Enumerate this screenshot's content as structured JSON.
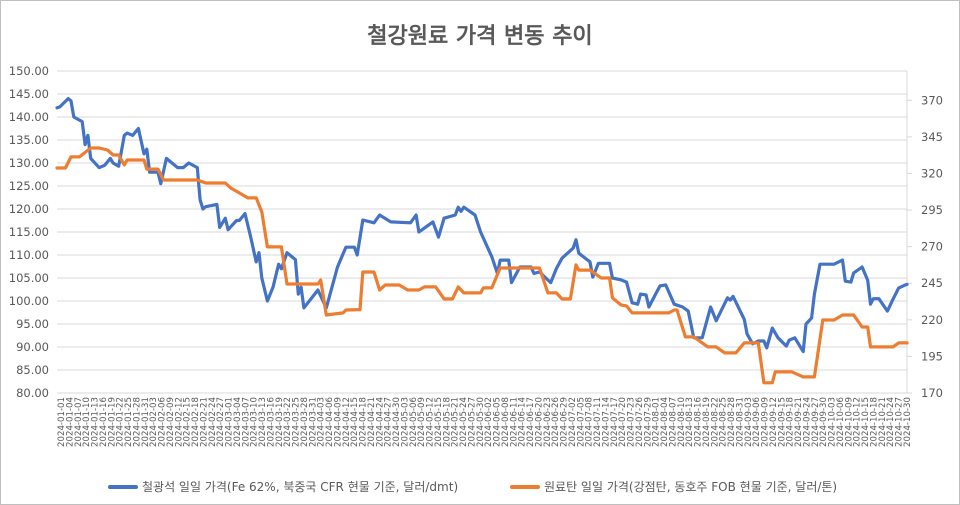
{
  "chart_data": {
    "type": "line",
    "title": "철강원료 가격 변동 추이",
    "x_ticks": [
      "2024-01-01",
      "2024-01-04",
      "2024-01-07",
      "2024-01-10",
      "2024-01-13",
      "2024-01-16",
      "2024-01-19",
      "2024-01-22",
      "2024-01-25",
      "2024-01-28",
      "2024-01-31",
      "2024-02-03",
      "2024-02-06",
      "2024-02-09",
      "2024-02-12",
      "2024-02-15",
      "2024-02-18",
      "2024-02-21",
      "2024-02-24",
      "2024-02-27",
      "2024-03-01",
      "2024-03-04",
      "2024-03-07",
      "2024-03-10",
      "2024-03-13",
      "2024-03-16",
      "2024-03-19",
      "2024-03-22",
      "2024-03-25",
      "2024-03-28",
      "2024-03-31",
      "2024-04-03",
      "2024-04-06",
      "2024-04-09",
      "2024-04-12",
      "2024-04-15",
      "2024-04-18",
      "2024-04-21",
      "2024-04-24",
      "2024-04-27",
      "2024-04-30",
      "2024-05-03",
      "2024-05-06",
      "2024-05-09",
      "2024-05-12",
      "2024-05-15",
      "2024-05-18",
      "2024-05-21",
      "2024-05-24",
      "2024-05-27",
      "2024-05-30",
      "2024-06-02",
      "2024-06-05",
      "2024-06-08",
      "2024-06-11",
      "2024-06-14",
      "2024-06-17",
      "2024-06-20",
      "2024-06-23",
      "2024-06-26",
      "2024-06-29",
      "2024-07-02",
      "2024-07-05",
      "2024-07-08",
      "2024-07-11",
      "2024-07-14",
      "2024-07-17",
      "2024-07-20",
      "2024-07-23",
      "2024-07-26",
      "2024-07-29",
      "2024-08-01",
      "2024-08-04",
      "2024-08-07",
      "2024-08-10",
      "2024-08-13",
      "2024-08-16",
      "2024-08-19",
      "2024-08-22",
      "2024-08-25",
      "2024-08-28",
      "2024-08-31",
      "2024-09-03",
      "2024-09-06",
      "2024-09-09",
      "2024-09-12",
      "2024-09-15",
      "2024-09-18",
      "2024-09-21",
      "2024-09-24",
      "2024-09-27",
      "2024-09-30",
      "2024-10-03",
      "2024-10-06",
      "2024-10-09",
      "2024-10-12",
      "2024-10-15",
      "2024-10-18",
      "2024-10-21",
      "2024-10-24",
      "2024-10-27",
      "2024-10-30"
    ],
    "x_range_days": [
      0,
      303
    ],
    "y_left": {
      "min": 80,
      "max": 150,
      "ticks": [
        "150.00",
        "145.00",
        "140.00",
        "135.00",
        "130.00",
        "125.00",
        "120.00",
        "115.00",
        "110.00",
        "105.00",
        "100.00",
        "95.00",
        "90.00",
        "85.00",
        "80.00"
      ],
      "tick_values": [
        150,
        145,
        140,
        135,
        130,
        125,
        120,
        115,
        110,
        105,
        100,
        95,
        90,
        85,
        80
      ]
    },
    "y_right": {
      "min": 170,
      "max": 390,
      "ticks": [
        "370",
        "345",
        "320",
        "295",
        "270",
        "245",
        "220",
        "195",
        "170"
      ],
      "tick_values": [
        370,
        345,
        320,
        295,
        270,
        245,
        220,
        195,
        170
      ]
    },
    "grid": true,
    "legend_position": "bottom",
    "series": [
      {
        "name": "철광석 일일 가격(Fe 62%, 북중국 CFR 현물 기준, 달러/dmt)",
        "axis": "left",
        "color": "#4472C4",
        "points_day_value": [
          [
            0,
            142
          ],
          [
            1,
            142.2
          ],
          [
            4,
            144
          ],
          [
            5,
            143.5
          ],
          [
            6,
            140
          ],
          [
            9,
            139
          ],
          [
            10,
            134
          ],
          [
            11,
            136
          ],
          [
            12,
            131
          ],
          [
            15,
            129
          ],
          [
            17,
            129.5
          ],
          [
            19,
            131
          ],
          [
            20,
            130
          ],
          [
            22,
            129.3
          ],
          [
            24,
            136
          ],
          [
            25,
            136.5
          ],
          [
            27,
            136
          ],
          [
            29,
            137.5
          ],
          [
            31,
            132
          ],
          [
            32,
            133
          ],
          [
            33,
            128
          ],
          [
            36,
            128
          ],
          [
            37,
            125.5
          ],
          [
            39,
            131
          ],
          [
            41,
            130
          ],
          [
            43,
            129
          ],
          [
            45,
            129
          ],
          [
            47,
            130
          ],
          [
            50,
            129
          ],
          [
            51,
            122
          ],
          [
            52,
            120
          ],
          [
            53,
            120.5
          ],
          [
            57,
            121
          ],
          [
            58,
            116
          ],
          [
            60,
            118
          ],
          [
            61,
            115.5
          ],
          [
            64,
            117.5
          ],
          [
            65,
            117.5
          ],
          [
            67,
            119
          ],
          [
            69,
            114
          ],
          [
            71,
            108.5
          ],
          [
            72,
            110.5
          ],
          [
            73,
            105
          ],
          [
            75,
            100
          ],
          [
            77,
            103
          ],
          [
            79,
            108
          ],
          [
            80,
            107
          ],
          [
            82,
            110.5
          ],
          [
            85,
            109
          ],
          [
            86,
            101.5
          ],
          [
            87,
            103
          ],
          [
            88,
            98.5
          ],
          [
            93,
            102.4
          ],
          [
            96,
            98.5
          ],
          [
            100,
            107.4
          ],
          [
            103,
            111.7
          ],
          [
            106,
            111.7
          ],
          [
            107,
            110
          ],
          [
            109,
            117.6
          ],
          [
            113,
            117
          ],
          [
            115,
            118.7
          ],
          [
            119,
            117.2
          ],
          [
            126,
            117
          ],
          [
            128,
            118.7
          ],
          [
            129,
            115
          ],
          [
            134,
            117.2
          ],
          [
            136,
            113.9
          ],
          [
            138,
            118
          ],
          [
            142,
            118.7
          ],
          [
            143,
            120.4
          ],
          [
            144,
            119.5
          ],
          [
            145,
            120.4
          ],
          [
            149,
            118.7
          ],
          [
            151,
            115
          ],
          [
            155,
            109.6
          ],
          [
            157,
            106
          ],
          [
            158,
            108.9
          ],
          [
            161,
            108.9
          ],
          [
            162,
            104
          ],
          [
            165,
            107.4
          ],
          [
            169,
            107.4
          ],
          [
            170,
            106
          ],
          [
            172,
            106.3
          ],
          [
            176,
            104
          ],
          [
            178,
            107
          ],
          [
            180,
            109.3
          ],
          [
            184,
            111.5
          ],
          [
            185,
            113.3
          ],
          [
            186,
            110.4
          ],
          [
            190,
            108.5
          ],
          [
            191,
            105.2
          ],
          [
            193,
            108.2
          ],
          [
            197,
            108.2
          ],
          [
            198,
            105
          ],
          [
            201,
            104.6
          ],
          [
            203,
            104.1
          ],
          [
            205,
            99.6
          ],
          [
            207,
            99.3
          ],
          [
            208,
            101.5
          ],
          [
            210,
            101.3
          ],
          [
            211,
            98.7
          ],
          [
            214,
            102.2
          ],
          [
            215,
            103.3
          ],
          [
            217,
            103.5
          ],
          [
            220,
            99.3
          ],
          [
            223,
            98.7
          ],
          [
            225,
            97.8
          ],
          [
            227,
            92
          ],
          [
            230,
            92
          ],
          [
            233,
            98.7
          ],
          [
            235,
            95.7
          ],
          [
            239,
            100.7
          ],
          [
            240,
            100.2
          ],
          [
            241,
            101
          ],
          [
            245,
            96
          ],
          [
            246,
            92.8
          ],
          [
            248,
            90.7
          ],
          [
            250,
            91.3
          ],
          [
            252,
            91.3
          ],
          [
            253,
            89.8
          ],
          [
            255,
            94.1
          ],
          [
            257,
            92
          ],
          [
            260,
            90.2
          ],
          [
            261,
            91.5
          ],
          [
            263,
            92
          ],
          [
            266,
            89
          ],
          [
            267,
            95
          ],
          [
            269,
            96.3
          ],
          [
            270,
            101.5
          ],
          [
            272,
            108
          ],
          [
            277,
            108
          ],
          [
            280,
            108.9
          ],
          [
            281,
            104.3
          ],
          [
            283,
            104.1
          ],
          [
            284,
            106.1
          ],
          [
            287,
            107.4
          ],
          [
            289,
            104.5
          ],
          [
            290,
            99.3
          ],
          [
            291,
            100.5
          ],
          [
            293,
            100.5
          ],
          [
            296,
            97.8
          ],
          [
            298,
            100.4
          ],
          [
            300,
            102.8
          ],
          [
            302,
            103.4
          ],
          [
            303,
            103.6
          ]
        ]
      },
      {
        "name": "원료탄 일일 가격(강점탄, 동호주 FOB 현물 기준, 달러/톤)",
        "axis": "right",
        "color": "#ED7D31",
        "points_day_value": [
          [
            0,
            323.7
          ],
          [
            3,
            323.7
          ],
          [
            5,
            331.3
          ],
          [
            8,
            331.3
          ],
          [
            12,
            337.4
          ],
          [
            15,
            337.4
          ],
          [
            18,
            336
          ],
          [
            20,
            332.6
          ],
          [
            22,
            332.6
          ],
          [
            24,
            325.8
          ],
          [
            25,
            329.2
          ],
          [
            31,
            329.2
          ],
          [
            32,
            323
          ],
          [
            36,
            323
          ],
          [
            38,
            315.5
          ],
          [
            50,
            315.5
          ],
          [
            53,
            313.5
          ],
          [
            60,
            313.5
          ],
          [
            62,
            310
          ],
          [
            65,
            306.7
          ],
          [
            68,
            303.3
          ],
          [
            71,
            303.3
          ],
          [
            73,
            293.7
          ],
          [
            75,
            269.8
          ],
          [
            80,
            269.8
          ],
          [
            82,
            244.5
          ],
          [
            93,
            244.5
          ],
          [
            94,
            247.2
          ],
          [
            96,
            223.3
          ],
          [
            102,
            224.7
          ],
          [
            103,
            226.7
          ],
          [
            108,
            227
          ],
          [
            109,
            252.7
          ],
          [
            113,
            252.7
          ],
          [
            115,
            240.4
          ],
          [
            117,
            243.8
          ],
          [
            122,
            243.8
          ],
          [
            125,
            240.4
          ],
          [
            129,
            240.4
          ],
          [
            131,
            242.5
          ],
          [
            135,
            242.5
          ],
          [
            138,
            234.3
          ],
          [
            141,
            234.3
          ],
          [
            143,
            242.5
          ],
          [
            145,
            238.4
          ],
          [
            151,
            238.4
          ],
          [
            152,
            241.8
          ],
          [
            155,
            241.8
          ],
          [
            158,
            255.4
          ],
          [
            172,
            255.4
          ],
          [
            175,
            238.4
          ],
          [
            178,
            238.4
          ],
          [
            180,
            234.3
          ],
          [
            183,
            234.3
          ],
          [
            185,
            257.5
          ],
          [
            186,
            254
          ],
          [
            190,
            254
          ],
          [
            194,
            248.6
          ],
          [
            197,
            248.6
          ],
          [
            198,
            235
          ],
          [
            201,
            230.2
          ],
          [
            203,
            229.5
          ],
          [
            205,
            224.7
          ],
          [
            218,
            224.7
          ],
          [
            220,
            226.7
          ],
          [
            221,
            226.7
          ],
          [
            224,
            208.3
          ],
          [
            227,
            208.3
          ],
          [
            232,
            201.5
          ],
          [
            235,
            201.5
          ],
          [
            238,
            197.4
          ],
          [
            242,
            197.4
          ],
          [
            245,
            204.2
          ],
          [
            250,
            204.2
          ],
          [
            252,
            177
          ],
          [
            255,
            177
          ],
          [
            256,
            184.4
          ],
          [
            262,
            184.4
          ],
          [
            266,
            181
          ],
          [
            270,
            181
          ],
          [
            273,
            219.9
          ],
          [
            277,
            219.9
          ],
          [
            280,
            223.3
          ],
          [
            284,
            223.3
          ],
          [
            287,
            215.1
          ],
          [
            289,
            215.1
          ],
          [
            290,
            201.5
          ],
          [
            298,
            201.5
          ],
          [
            300,
            204.2
          ],
          [
            303,
            204.2
          ]
        ]
      }
    ]
  }
}
